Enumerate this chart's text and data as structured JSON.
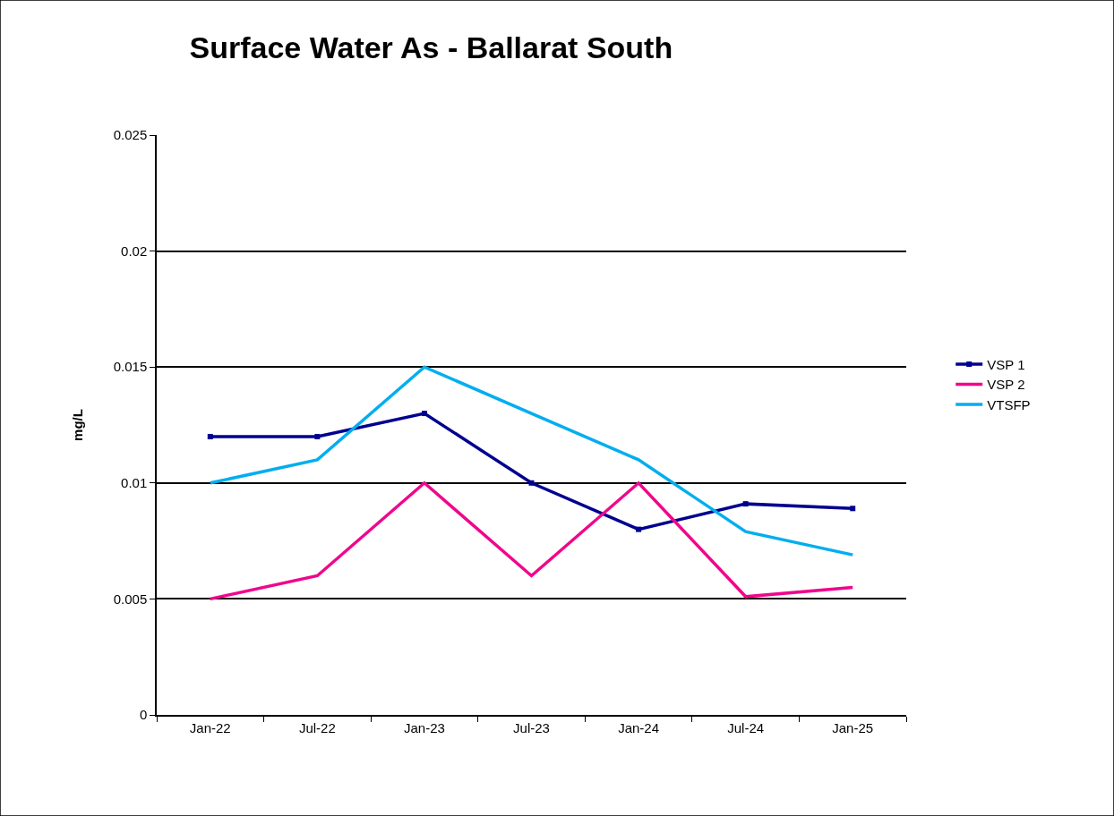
{
  "chart_data": {
    "type": "line",
    "title": "Surface Water As - Ballarat South",
    "ylabel": "mg/L",
    "categories": [
      "Jan-22",
      "Jul-22",
      "Jan-23",
      "Jul-23",
      "Jan-24",
      "Jul-24",
      "Jan-25"
    ],
    "series": [
      {
        "name": "VSP 1",
        "color": "#000090",
        "marker": "square",
        "values": [
          0.012,
          0.012,
          0.013,
          0.01,
          0.008,
          0.0091,
          0.0089
        ]
      },
      {
        "name": "VSP 2",
        "color": "#f0068c",
        "marker": "none",
        "values": [
          0.005,
          0.006,
          0.01,
          0.006,
          0.01,
          0.0051,
          0.0055
        ]
      },
      {
        "name": "VTSFP",
        "color": "#00aeef",
        "marker": "none",
        "values": [
          0.01,
          0.011,
          0.015,
          0.013,
          0.011,
          0.0079,
          0.0069
        ]
      }
    ],
    "ylim": [
      0,
      0.025
    ],
    "yticks": [
      0,
      0.005,
      0.01,
      0.015,
      0.02,
      0.025
    ],
    "grid": "y",
    "legend": "right",
    "line_style": "solid"
  }
}
